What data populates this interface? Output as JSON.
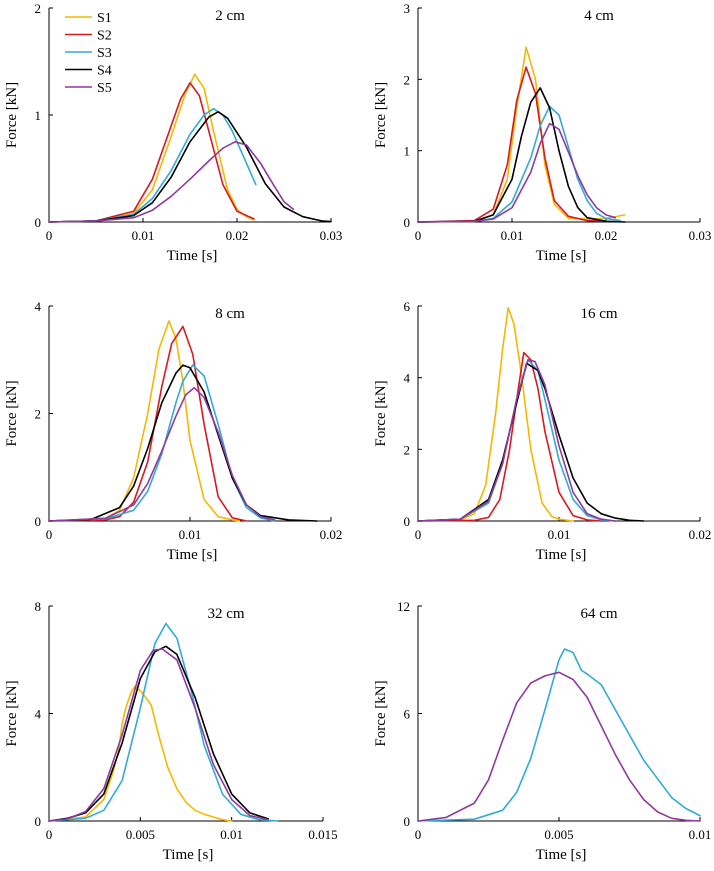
{
  "colors": {
    "S1": "#f5b800",
    "S2": "#d71920",
    "S3": "#33a9d9",
    "S4": "#000000",
    "S5": "#8e3b9e"
  },
  "legend": [
    "S1",
    "S2",
    "S3",
    "S4",
    "S5"
  ],
  "chart_data": [
    {
      "type": "line",
      "title": "2 cm",
      "xlabel": "Time [s]",
      "ylabel": "Force [kN]",
      "xlim": [
        0,
        0.03
      ],
      "ylim": [
        0,
        2
      ],
      "xticks": [
        0,
        0.01,
        0.02,
        0.03
      ],
      "xtick_labels": [
        "0",
        "0.01",
        "0.02",
        "0.03"
      ],
      "yticks": [
        0,
        1,
        2
      ],
      "ytick_labels": [
        "0",
        "1",
        "2"
      ],
      "series": [
        {
          "name": "S1",
          "x": [
            0,
            0.005,
            0.009,
            0.011,
            0.013,
            0.0145,
            0.0155,
            0.0165,
            0.0175,
            0.019,
            0.02,
            0.021,
            0.0218
          ],
          "y": [
            0,
            0.01,
            0.08,
            0.3,
            0.8,
            1.2,
            1.38,
            1.25,
            0.85,
            0.3,
            0.12,
            0.05,
            0.02
          ]
        },
        {
          "name": "S2",
          "x": [
            0,
            0.005,
            0.009,
            0.011,
            0.013,
            0.014,
            0.015,
            0.016,
            0.017,
            0.0185,
            0.02,
            0.0218
          ],
          "y": [
            0,
            0.01,
            0.1,
            0.4,
            0.9,
            1.15,
            1.3,
            1.18,
            0.85,
            0.35,
            0.1,
            0.03
          ]
        },
        {
          "name": "S3",
          "x": [
            0,
            0.005,
            0.009,
            0.011,
            0.013,
            0.015,
            0.0165,
            0.0175,
            0.0185,
            0.0195,
            0.0205,
            0.022
          ],
          "y": [
            0,
            0.01,
            0.07,
            0.22,
            0.48,
            0.82,
            1.0,
            1.06,
            1.0,
            0.85,
            0.65,
            0.35
          ]
        },
        {
          "name": "S4",
          "x": [
            0,
            0.005,
            0.009,
            0.011,
            0.013,
            0.015,
            0.017,
            0.018,
            0.019,
            0.021,
            0.023,
            0.025,
            0.027,
            0.029,
            0.03
          ],
          "y": [
            0,
            0.01,
            0.06,
            0.18,
            0.42,
            0.75,
            0.98,
            1.03,
            0.97,
            0.7,
            0.36,
            0.14,
            0.05,
            0.01,
            0.005
          ]
        },
        {
          "name": "S5",
          "x": [
            0,
            0.005,
            0.009,
            0.011,
            0.013,
            0.015,
            0.017,
            0.0185,
            0.0198,
            0.021,
            0.0225,
            0.024,
            0.025,
            0.026
          ],
          "y": [
            0,
            0.01,
            0.04,
            0.11,
            0.24,
            0.4,
            0.57,
            0.69,
            0.75,
            0.72,
            0.55,
            0.33,
            0.19,
            0.12
          ]
        }
      ]
    },
    {
      "type": "line",
      "title": "4 cm",
      "xlabel": "Time [s]",
      "ylabel": "Force [kN]",
      "xlim": [
        0,
        0.03
      ],
      "ylim": [
        0,
        3
      ],
      "xticks": [
        0,
        0.01,
        0.02,
        0.03
      ],
      "xtick_labels": [
        "0",
        "0.01",
        "0.02",
        "0.03"
      ],
      "yticks": [
        0,
        1,
        2,
        3
      ],
      "ytick_labels": [
        "0",
        "1",
        "2",
        "3"
      ],
      "series": [
        {
          "name": "S1",
          "x": [
            0,
            0.006,
            0.008,
            0.0095,
            0.0105,
            0.0115,
            0.0125,
            0.0135,
            0.0145,
            0.016,
            0.018,
            0.02,
            0.022
          ],
          "y": [
            0,
            0.01,
            0.1,
            0.6,
            1.6,
            2.45,
            2.0,
            0.8,
            0.25,
            0.05,
            0.04,
            0.05,
            0.1
          ]
        },
        {
          "name": "S2",
          "x": [
            0,
            0.006,
            0.008,
            0.0095,
            0.0105,
            0.0115,
            0.0125,
            0.0135,
            0.0145,
            0.016,
            0.018,
            0.02
          ],
          "y": [
            0,
            0.02,
            0.18,
            0.8,
            1.7,
            2.17,
            1.8,
            0.9,
            0.3,
            0.08,
            0.02,
            0.01
          ]
        },
        {
          "name": "S3",
          "x": [
            0,
            0.006,
            0.008,
            0.01,
            0.012,
            0.013,
            0.014,
            0.015,
            0.016,
            0.017,
            0.018,
            0.019,
            0.02,
            0.0215
          ],
          "y": [
            0,
            0.01,
            0.05,
            0.28,
            0.9,
            1.35,
            1.62,
            1.5,
            1.05,
            0.6,
            0.3,
            0.12,
            0.05,
            0.02
          ]
        },
        {
          "name": "S4",
          "x": [
            0,
            0.006,
            0.008,
            0.01,
            0.011,
            0.012,
            0.013,
            0.014,
            0.015,
            0.016,
            0.017,
            0.018,
            0.02,
            0.022
          ],
          "y": [
            0,
            0.01,
            0.1,
            0.6,
            1.2,
            1.68,
            1.88,
            1.6,
            1.0,
            0.5,
            0.2,
            0.06,
            0.01,
            0.0
          ]
        },
        {
          "name": "S5",
          "x": [
            0,
            0.006,
            0.008,
            0.01,
            0.012,
            0.013,
            0.014,
            0.015,
            0.016,
            0.017,
            0.018,
            0.019,
            0.02,
            0.021
          ],
          "y": [
            0,
            0.01,
            0.04,
            0.2,
            0.7,
            1.1,
            1.38,
            1.3,
            0.98,
            0.65,
            0.38,
            0.2,
            0.1,
            0.06
          ]
        }
      ]
    },
    {
      "type": "line",
      "title": "8 cm",
      "xlabel": "Time [s]",
      "ylabel": "Force [kN]",
      "xlim": [
        0,
        0.02
      ],
      "ylim": [
        0,
        4
      ],
      "xticks": [
        0,
        0.01,
        0.02
      ],
      "xtick_labels": [
        "0",
        "0.01",
        "0.02"
      ],
      "yticks": [
        0,
        2,
        4
      ],
      "ytick_labels": [
        "0",
        "2",
        "4"
      ],
      "series": [
        {
          "name": "S1",
          "x": [
            0,
            0.004,
            0.005,
            0.006,
            0.007,
            0.0078,
            0.0085,
            0.009,
            0.0095,
            0.01,
            0.011,
            0.012,
            0.013,
            0.0135
          ],
          "y": [
            0,
            0.05,
            0.2,
            0.8,
            2.0,
            3.2,
            3.72,
            3.4,
            2.6,
            1.5,
            0.4,
            0.08,
            0.02,
            0.0
          ]
        },
        {
          "name": "S2",
          "x": [
            0,
            0.004,
            0.005,
            0.006,
            0.007,
            0.008,
            0.0087,
            0.0095,
            0.0102,
            0.011,
            0.012,
            0.013,
            0.014
          ],
          "y": [
            0,
            0.02,
            0.08,
            0.35,
            1.1,
            2.5,
            3.3,
            3.62,
            3.1,
            1.8,
            0.45,
            0.06,
            0.0
          ]
        },
        {
          "name": "S3",
          "x": [
            0,
            0.004,
            0.006,
            0.007,
            0.008,
            0.009,
            0.0095,
            0.0102,
            0.011,
            0.012,
            0.013,
            0.014,
            0.015,
            0.016
          ],
          "y": [
            0,
            0.04,
            0.2,
            0.55,
            1.25,
            2.2,
            2.6,
            2.9,
            2.7,
            1.8,
            0.8,
            0.25,
            0.06,
            0.0
          ]
        },
        {
          "name": "S4",
          "x": [
            0,
            0.003,
            0.005,
            0.006,
            0.007,
            0.008,
            0.009,
            0.0095,
            0.01,
            0.011,
            0.012,
            0.013,
            0.014,
            0.015,
            0.017,
            0.019
          ],
          "y": [
            0,
            0.03,
            0.25,
            0.65,
            1.35,
            2.2,
            2.75,
            2.9,
            2.85,
            2.4,
            1.6,
            0.8,
            0.3,
            0.1,
            0.02,
            0.0
          ]
        },
        {
          "name": "S5",
          "x": [
            0,
            0.004,
            0.006,
            0.007,
            0.008,
            0.009,
            0.0097,
            0.0103,
            0.011,
            0.012,
            0.013,
            0.014,
            0.015,
            0.016
          ],
          "y": [
            0,
            0.05,
            0.3,
            0.7,
            1.3,
            1.95,
            2.35,
            2.48,
            2.3,
            1.65,
            0.85,
            0.3,
            0.08,
            0.02
          ]
        }
      ]
    },
    {
      "type": "line",
      "title": "16 cm",
      "xlabel": "Time [s]",
      "ylabel": "Force [kN]",
      "xlim": [
        0,
        0.02
      ],
      "ylim": [
        0,
        6
      ],
      "xticks": [
        0,
        0.01,
        0.02
      ],
      "xtick_labels": [
        "0",
        "0.01",
        "0.02"
      ],
      "yticks": [
        0,
        2,
        4,
        6
      ],
      "ytick_labels": [
        "0",
        "2",
        "4",
        "6"
      ],
      "series": [
        {
          "name": "S1",
          "x": [
            0,
            0.003,
            0.004,
            0.0048,
            0.0055,
            0.006,
            0.0064,
            0.0068,
            0.0073,
            0.008,
            0.0088,
            0.0095,
            0.01,
            0.011
          ],
          "y": [
            0,
            0.03,
            0.2,
            1.0,
            3.0,
            4.8,
            5.95,
            5.5,
            4.2,
            2.0,
            0.5,
            0.12,
            0.05,
            0.0
          ]
        },
        {
          "name": "S2",
          "x": [
            0,
            0.004,
            0.005,
            0.0058,
            0.0065,
            0.007,
            0.0075,
            0.008,
            0.0085,
            0.009,
            0.01,
            0.011,
            0.012,
            0.013
          ],
          "y": [
            0,
            0.02,
            0.1,
            0.6,
            2.0,
            3.4,
            4.7,
            4.5,
            3.7,
            2.5,
            0.8,
            0.15,
            0.03,
            0.0
          ]
        },
        {
          "name": "S3",
          "x": [
            0,
            0.003,
            0.005,
            0.006,
            0.007,
            0.0078,
            0.0085,
            0.009,
            0.01,
            0.011,
            0.012,
            0.013,
            0.014
          ],
          "y": [
            0,
            0.05,
            0.5,
            1.6,
            3.4,
            4.5,
            4.2,
            3.4,
            1.7,
            0.6,
            0.15,
            0.03,
            0.0
          ]
        },
        {
          "name": "S4",
          "x": [
            0,
            0.003,
            0.005,
            0.006,
            0.007,
            0.0077,
            0.0085,
            0.009,
            0.01,
            0.011,
            0.012,
            0.013,
            0.014,
            0.015,
            0.016
          ],
          "y": [
            0,
            0.05,
            0.6,
            1.7,
            3.3,
            4.4,
            4.2,
            3.7,
            2.4,
            1.2,
            0.5,
            0.2,
            0.08,
            0.02,
            0.0
          ]
        },
        {
          "name": "S5",
          "x": [
            0,
            0.003,
            0.005,
            0.006,
            0.007,
            0.0078,
            0.0083,
            0.009,
            0.01,
            0.011,
            0.012,
            0.013,
            0.014
          ],
          "y": [
            0,
            0.05,
            0.55,
            1.6,
            3.4,
            4.5,
            4.45,
            3.8,
            2.1,
            0.8,
            0.2,
            0.05,
            0.0
          ]
        }
      ]
    },
    {
      "type": "line",
      "title": "32 cm",
      "xlabel": "Time [s]",
      "ylabel": "Force [kN]",
      "xlim": [
        0,
        0.015
      ],
      "ylim": [
        0,
        8
      ],
      "xticks": [
        0,
        0.005,
        0.01,
        0.015
      ],
      "xtick_labels": [
        "0",
        "0.005",
        "0.01",
        "0.015"
      ],
      "yticks": [
        0,
        4,
        8
      ],
      "ytick_labels": [
        "0",
        "4",
        "8"
      ],
      "series": [
        {
          "name": "S1",
          "x": [
            0,
            0.002,
            0.003,
            0.0035,
            0.0038,
            0.004,
            0.0042,
            0.0045,
            0.0047,
            0.005,
            0.0053,
            0.0056,
            0.006,
            0.0065,
            0.007,
            0.0075,
            0.008,
            0.0085,
            0.009,
            0.0095,
            0.01
          ],
          "y": [
            0,
            0.15,
            0.8,
            1.8,
            2.6,
            3.6,
            4.2,
            4.8,
            5.0,
            4.85,
            4.6,
            4.3,
            3.2,
            2.0,
            1.2,
            0.7,
            0.4,
            0.25,
            0.15,
            0.05,
            0.0
          ]
        },
        {
          "name": "S3",
          "x": [
            0,
            0.002,
            0.003,
            0.004,
            0.005,
            0.0058,
            0.0064,
            0.007,
            0.0078,
            0.0085,
            0.0095,
            0.0105,
            0.0115,
            0.0125
          ],
          "y": [
            0,
            0.1,
            0.4,
            1.5,
            4.2,
            6.6,
            7.35,
            6.8,
            4.8,
            2.8,
            1.0,
            0.25,
            0.05,
            0.0
          ]
        },
        {
          "name": "S4",
          "x": [
            0,
            0.001,
            0.002,
            0.003,
            0.004,
            0.005,
            0.0058,
            0.0064,
            0.007,
            0.008,
            0.009,
            0.01,
            0.011,
            0.012
          ],
          "y": [
            0,
            0.1,
            0.3,
            1.0,
            2.9,
            5.3,
            6.3,
            6.5,
            6.2,
            4.6,
            2.5,
            1.0,
            0.3,
            0.08
          ]
        },
        {
          "name": "S5",
          "x": [
            0,
            0.001,
            0.002,
            0.003,
            0.004,
            0.005,
            0.0057,
            0.0062,
            0.007,
            0.008,
            0.009,
            0.01,
            0.011,
            0.012
          ],
          "y": [
            0,
            0.08,
            0.35,
            1.2,
            3.2,
            5.6,
            6.35,
            6.4,
            6.0,
            4.2,
            2.1,
            0.8,
            0.2,
            0.05
          ]
        }
      ]
    },
    {
      "type": "line",
      "title": "64 cm",
      "xlabel": "Time [s]",
      "ylabel": "Force [kN]",
      "xlim": [
        0,
        0.01
      ],
      "ylim": [
        0,
        12
      ],
      "xticks": [
        0,
        0.005,
        0.01
      ],
      "xtick_labels": [
        "0",
        "0.005",
        "0.01"
      ],
      "yticks": [
        0,
        6,
        12
      ],
      "ytick_labels": [
        "0",
        "6",
        "12"
      ],
      "series": [
        {
          "name": "S3",
          "x": [
            0,
            0.002,
            0.003,
            0.0035,
            0.004,
            0.0045,
            0.005,
            0.0052,
            0.0055,
            0.0058,
            0.006,
            0.0065,
            0.007,
            0.0075,
            0.008,
            0.009,
            0.0095,
            0.01
          ],
          "y": [
            0,
            0.1,
            0.6,
            1.6,
            3.5,
            6.2,
            9.0,
            9.6,
            9.4,
            8.4,
            8.2,
            7.6,
            6.2,
            4.8,
            3.4,
            1.3,
            0.7,
            0.3
          ]
        },
        {
          "name": "S5",
          "x": [
            0,
            0.001,
            0.002,
            0.0025,
            0.003,
            0.0035,
            0.004,
            0.0045,
            0.005,
            0.0055,
            0.006,
            0.0065,
            0.007,
            0.0075,
            0.008,
            0.0085,
            0.009,
            0.0095,
            0.01
          ],
          "y": [
            0,
            0.2,
            1.0,
            2.3,
            4.5,
            6.6,
            7.7,
            8.1,
            8.3,
            7.9,
            6.9,
            5.3,
            3.7,
            2.3,
            1.2,
            0.5,
            0.15,
            0.04,
            0.0
          ]
        }
      ]
    }
  ]
}
